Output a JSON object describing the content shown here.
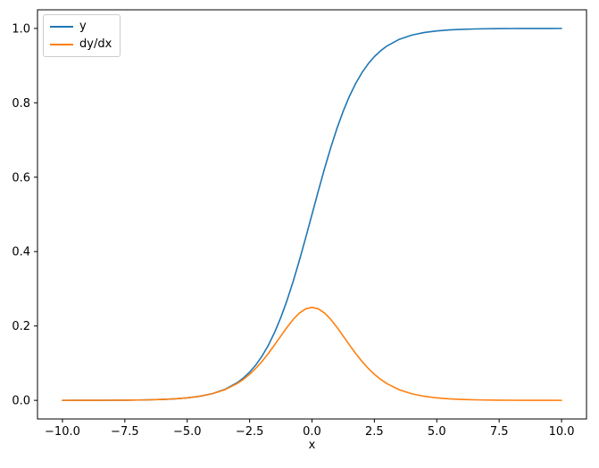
{
  "figure": {
    "background": "#ffffff"
  },
  "chart_data": {
    "type": "line",
    "title": "",
    "xlabel": "x",
    "ylabel": "",
    "grid": false,
    "legend_position": "upper left",
    "xlim": [
      -11,
      11
    ],
    "ylim": [
      -0.05,
      1.05
    ],
    "x_ticks": [
      "−10.0",
      "−7.5",
      "−5.0",
      "−2.5",
      "0.0",
      "2.5",
      "5.0",
      "7.5",
      "10.0"
    ],
    "x_tick_values": [
      -10,
      -7.5,
      -5,
      -2.5,
      0,
      2.5,
      5,
      7.5,
      10
    ],
    "y_ticks": [
      "0.0",
      "0.2",
      "0.4",
      "0.6",
      "0.8",
      "1.0"
    ],
    "y_tick_values": [
      0,
      0.2,
      0.4,
      0.6,
      0.8,
      1.0
    ],
    "x": [
      -10,
      -9.5,
      -9,
      -8.5,
      -8,
      -7.5,
      -7,
      -6.5,
      -6,
      -5.5,
      -5,
      -4.5,
      -4,
      -3.5,
      -3,
      -2.75,
      -2.5,
      -2.25,
      -2,
      -1.75,
      -1.5,
      -1.25,
      -1,
      -0.75,
      -0.5,
      -0.25,
      0,
      0.25,
      0.5,
      0.75,
      1,
      1.25,
      1.5,
      1.75,
      2,
      2.25,
      2.5,
      2.75,
      3,
      3.5,
      4,
      4.5,
      5,
      5.5,
      6,
      6.5,
      7,
      7.5,
      8,
      8.5,
      9,
      9.5,
      10
    ],
    "series": [
      {
        "name": "y",
        "color": "#1f77b4",
        "values": [
          5e-05,
          7e-05,
          0.00012,
          0.0002,
          0.00034,
          0.00055,
          0.00091,
          0.0015,
          0.00247,
          0.00407,
          0.00669,
          0.01099,
          0.01799,
          0.02931,
          0.04743,
          0.06009,
          0.07586,
          0.09535,
          0.1192,
          0.14805,
          0.18243,
          0.2227,
          0.26894,
          0.32082,
          0.37754,
          0.43782,
          0.5,
          0.56218,
          0.62246,
          0.67918,
          0.73106,
          0.7773,
          0.81757,
          0.85195,
          0.8808,
          0.90465,
          0.92414,
          0.93991,
          0.95257,
          0.97069,
          0.98201,
          0.98901,
          0.99331,
          0.99593,
          0.99753,
          0.9985,
          0.99909,
          0.99945,
          0.99966,
          0.9998,
          0.99988,
          0.99993,
          0.99995
        ]
      },
      {
        "name": "dy/dx",
        "color": "#ff7f0e",
        "values": [
          5e-05,
          7e-05,
          0.00012,
          0.0002,
          0.00034,
          0.00055,
          0.00091,
          0.0015,
          0.00247,
          0.00406,
          0.00665,
          0.01087,
          0.01766,
          0.02845,
          0.04518,
          0.05648,
          0.0701,
          0.08626,
          0.10499,
          0.12613,
          0.14915,
          0.1731,
          0.19661,
          0.21789,
          0.235,
          0.24613,
          0.25,
          0.24613,
          0.235,
          0.21789,
          0.19661,
          0.1731,
          0.14915,
          0.12613,
          0.10499,
          0.08626,
          0.0701,
          0.05648,
          0.04518,
          0.02845,
          0.01766,
          0.01087,
          0.00665,
          0.00406,
          0.00247,
          0.0015,
          0.00091,
          0.00055,
          0.00034,
          0.0002,
          0.00012,
          7e-05,
          5e-05
        ]
      }
    ]
  }
}
